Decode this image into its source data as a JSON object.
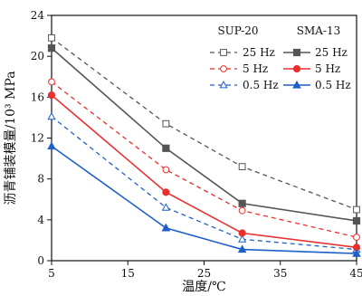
{
  "chart_data": {
    "type": "line",
    "title": "",
    "xlabel": "温度/℃",
    "ylabel": "沥青铺装模量/10³ MPa",
    "xlim": [
      5,
      45
    ],
    "ylim": [
      0,
      24
    ],
    "xticks": [
      5,
      15,
      25,
      35,
      45
    ],
    "yticks": [
      0,
      4,
      8,
      12,
      16,
      20,
      24
    ],
    "x": [
      5,
      20,
      30,
      45
    ],
    "grid": false,
    "legend_placement": "top-right",
    "legend_groups": [
      {
        "heading": "SUP-20",
        "line_style": "dashed",
        "marker_fill": "hollow"
      },
      {
        "heading": "SMA-13",
        "line_style": "solid",
        "marker_fill": "filled"
      }
    ],
    "series": [
      {
        "name": "25 Hz",
        "group": "SUP-20",
        "marker": "square",
        "color": "#555555",
        "values": [
          21.8,
          13.4,
          9.2,
          5.0
        ]
      },
      {
        "name": "5 Hz",
        "group": "SUP-20",
        "marker": "circle",
        "color": "#e8302f",
        "values": [
          17.5,
          8.9,
          4.9,
          2.3
        ]
      },
      {
        "name": "0.5 Hz",
        "group": "SUP-20",
        "marker": "triangle",
        "color": "#1f5fc8",
        "values": [
          14.1,
          5.2,
          2.1,
          1.1
        ]
      },
      {
        "name": "25 Hz",
        "group": "SMA-13",
        "marker": "square",
        "color": "#555555",
        "values": [
          20.8,
          11.0,
          5.6,
          3.9
        ]
      },
      {
        "name": "5 Hz",
        "group": "SMA-13",
        "marker": "circle",
        "color": "#e8302f",
        "values": [
          16.2,
          6.7,
          2.7,
          1.3
        ]
      },
      {
        "name": "0.5 Hz",
        "group": "SMA-13",
        "marker": "triangle",
        "color": "#1f5fc8",
        "values": [
          11.2,
          3.2,
          1.1,
          0.7
        ]
      }
    ]
  }
}
